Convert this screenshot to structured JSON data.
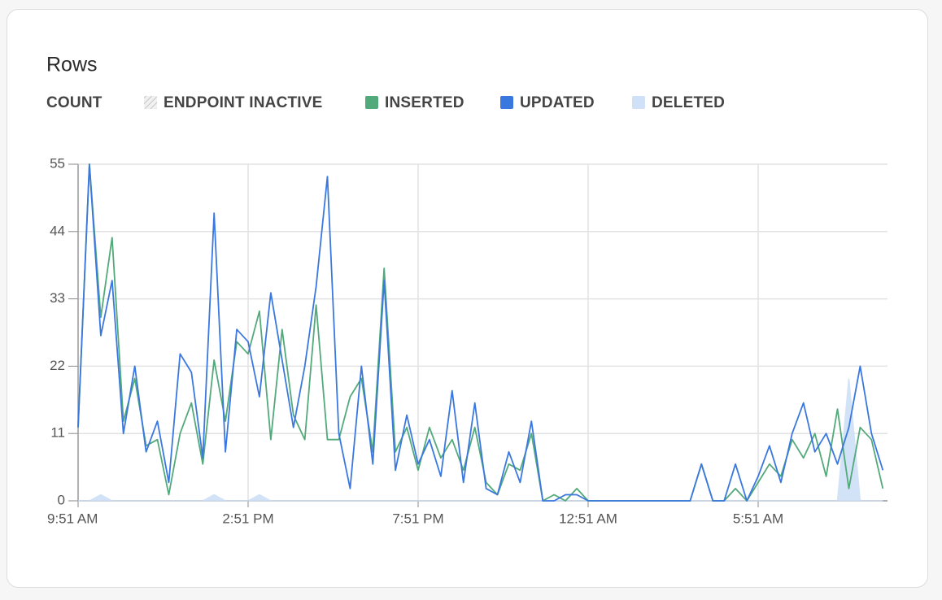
{
  "chart_data": {
    "type": "line",
    "title": "Rows",
    "y_label": "COUNT",
    "categories": [
      "9:51 AM",
      null,
      null,
      null,
      null,
      null,
      null,
      null,
      null,
      null,
      null,
      null,
      null,
      null,
      null,
      "2:51 PM",
      null,
      null,
      null,
      null,
      null,
      null,
      null,
      null,
      null,
      null,
      null,
      null,
      null,
      null,
      "7:51 PM",
      null,
      null,
      null,
      null,
      null,
      null,
      null,
      null,
      null,
      null,
      null,
      null,
      null,
      null,
      "12:51 AM",
      null,
      null,
      null,
      null,
      null,
      null,
      null,
      null,
      null,
      null,
      null,
      null,
      null,
      null,
      "5:51 AM",
      null,
      null,
      null,
      null,
      null,
      null,
      null,
      null,
      null,
      null,
      null
    ],
    "series": [
      {
        "name": "ENDPOINT INACTIVE",
        "color": "#d9d9d9",
        "pattern": "hatch",
        "values": [
          null,
          null,
          null,
          null,
          null,
          null,
          null,
          null,
          null,
          null,
          null,
          null,
          null,
          null,
          null,
          null,
          null,
          null,
          null,
          null,
          null,
          null,
          null,
          null,
          null,
          null,
          null,
          null,
          null,
          null,
          null,
          null,
          null,
          null,
          null,
          null,
          null,
          null,
          null,
          null,
          null,
          null,
          null,
          null,
          null,
          null,
          null,
          null,
          null,
          null,
          null,
          null,
          null,
          null,
          null,
          null,
          null,
          null,
          null,
          null,
          null,
          null,
          null,
          null,
          null,
          null,
          null,
          null,
          null,
          null,
          null,
          null
        ]
      },
      {
        "name": "INSERTED",
        "color": "#52a97a",
        "values": [
          12,
          55,
          30,
          43,
          13,
          20,
          9,
          10,
          1,
          11,
          16,
          6,
          23,
          13,
          26,
          24,
          31,
          10,
          28,
          14,
          10,
          32,
          10,
          10,
          17,
          20,
          8,
          38,
          8,
          12,
          5,
          12,
          7,
          10,
          5,
          12,
          3,
          1,
          6,
          5,
          11,
          0,
          1,
          0,
          2,
          0,
          0,
          0,
          0,
          0,
          0,
          0,
          0,
          0,
          0,
          6,
          0,
          0,
          2,
          0,
          3,
          6,
          4,
          10,
          7,
          11,
          4,
          15,
          2,
          12,
          10,
          2
        ]
      },
      {
        "name": "UPDATED",
        "color": "#3a78e0",
        "values": [
          12,
          55,
          27,
          36,
          11,
          22,
          8,
          13,
          3,
          24,
          21,
          7,
          47,
          8,
          28,
          26,
          17,
          34,
          23,
          12,
          22,
          35,
          53,
          11,
          2,
          22,
          6,
          36,
          5,
          14,
          6,
          10,
          4,
          18,
          3,
          16,
          2,
          1,
          8,
          3,
          13,
          0,
          0,
          1,
          1,
          0,
          0,
          0,
          0,
          0,
          0,
          0,
          0,
          0,
          0,
          6,
          0,
          0,
          6,
          0,
          4,
          9,
          3,
          11,
          16,
          8,
          11,
          6,
          12,
          22,
          11,
          5
        ]
      },
      {
        "name": "DELETED",
        "color": "#cfe0f7",
        "values": [
          0,
          0,
          1,
          0,
          0,
          0,
          0,
          0,
          0,
          0,
          0,
          0,
          1,
          0,
          0,
          0,
          1,
          0,
          0,
          0,
          0,
          0,
          0,
          0,
          0,
          0,
          0,
          0,
          0,
          0,
          0,
          0,
          0,
          0,
          0,
          0,
          0,
          0,
          0,
          0,
          0,
          0,
          0,
          0,
          0,
          0,
          0,
          0,
          0,
          0,
          0,
          0,
          0,
          0,
          0,
          0,
          0,
          0,
          0,
          0,
          0,
          0,
          0,
          0,
          0,
          0,
          0,
          0,
          20,
          0,
          0,
          0
        ]
      }
    ],
    "ylim": [
      0,
      55
    ],
    "yticks": [
      0,
      11,
      22,
      33,
      44,
      55
    ],
    "grid": true,
    "legend": "top-left"
  }
}
